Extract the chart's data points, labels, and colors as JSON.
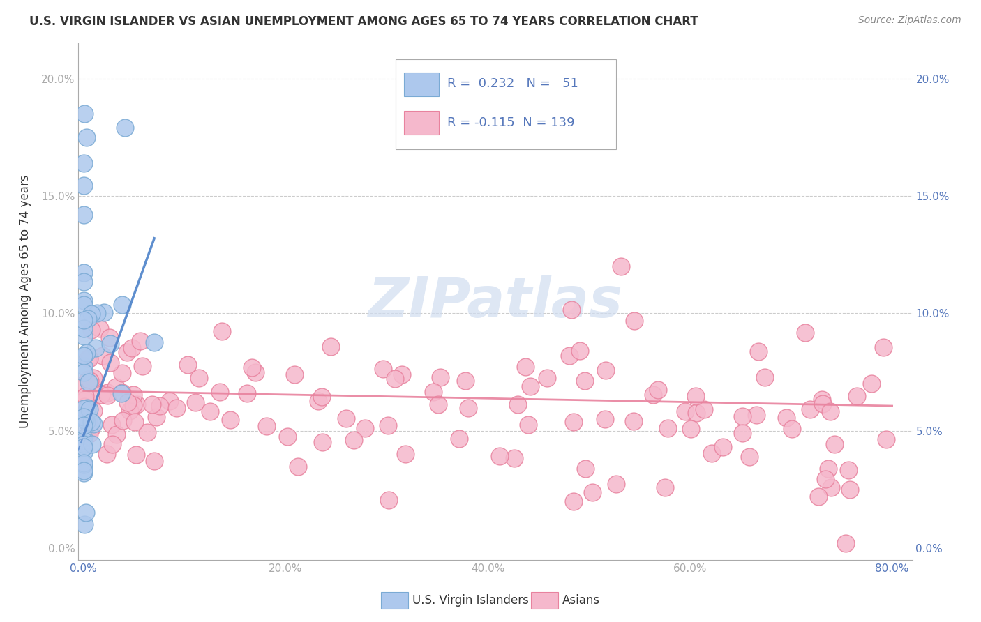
{
  "title": "U.S. VIRGIN ISLANDER VS ASIAN UNEMPLOYMENT AMONG AGES 65 TO 74 YEARS CORRELATION CHART",
  "source": "Source: ZipAtlas.com",
  "ylabel": "Unemployment Among Ages 65 to 74 years",
  "xlim": [
    -0.005,
    0.82
  ],
  "ylim": [
    -0.005,
    0.215
  ],
  "xticks": [
    0.0,
    0.2,
    0.4,
    0.6,
    0.8
  ],
  "xtick_labels": [
    "0.0%",
    "20.0%",
    "40.0%",
    "60.0%",
    "80.0%"
  ],
  "yticks": [
    0.0,
    0.05,
    0.1,
    0.15,
    0.2
  ],
  "ytick_labels": [
    "0.0%",
    "5.0%",
    "10.0%",
    "15.0%",
    "20.0%"
  ],
  "vi_R": 0.232,
  "vi_N": 51,
  "asian_R": -0.115,
  "asian_N": 139,
  "vi_color": "#adc8ed",
  "vi_edge_color": "#7aaad4",
  "asian_color": "#f5b8cc",
  "asian_edge_color": "#e8829e",
  "vi_line_color": "#5588cc",
  "asian_line_color": "#e8829e",
  "watermark_color": "#d0ddf0",
  "legend_vi_label": "U.S. Virgin Islanders",
  "legend_asian_label": "Asians",
  "label_color": "#5577bb"
}
